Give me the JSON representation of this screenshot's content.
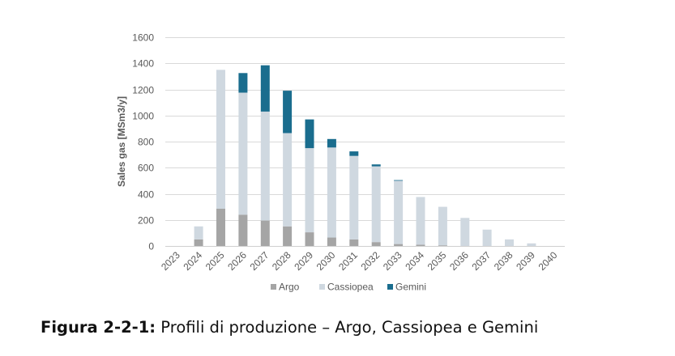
{
  "chart_data": {
    "type": "bar",
    "stacked": true,
    "title": "",
    "xlabel": "",
    "ylabel": "Sales gas [MSm3/y]",
    "ylim": [
      0,
      1600
    ],
    "yticks": [
      0,
      200,
      400,
      600,
      800,
      1000,
      1200,
      1400,
      1600
    ],
    "grid": true,
    "legend_position": "bottom",
    "categories": [
      "2023",
      "2024",
      "2025",
      "2026",
      "2027",
      "2028",
      "2029",
      "2030",
      "2031",
      "2032",
      "2033",
      "2034",
      "2035",
      "2036",
      "2037",
      "2038",
      "2039",
      "2040"
    ],
    "series": [
      {
        "name": "Argo",
        "color": "#a5a5a5",
        "values": [
          0,
          50,
          285,
          240,
          195,
          150,
          105,
          65,
          50,
          30,
          15,
          10,
          5,
          0,
          0,
          0,
          0,
          0
        ]
      },
      {
        "name": "Cassiopea",
        "color": "#cfd8e0",
        "values": [
          0,
          100,
          1065,
          935,
          835,
          715,
          645,
          690,
          640,
          580,
          485,
          365,
          295,
          215,
          125,
          50,
          20,
          0
        ]
      },
      {
        "name": "Gemini",
        "color": "#1a6d8e",
        "values": [
          0,
          0,
          0,
          150,
          355,
          325,
          220,
          65,
          35,
          15,
          5,
          0,
          0,
          0,
          0,
          0,
          0,
          0
        ]
      }
    ]
  },
  "caption": {
    "label": "Figura 2-2-1:",
    "text": " Profili di produzione – Argo, Cassiopea e Gemini"
  }
}
